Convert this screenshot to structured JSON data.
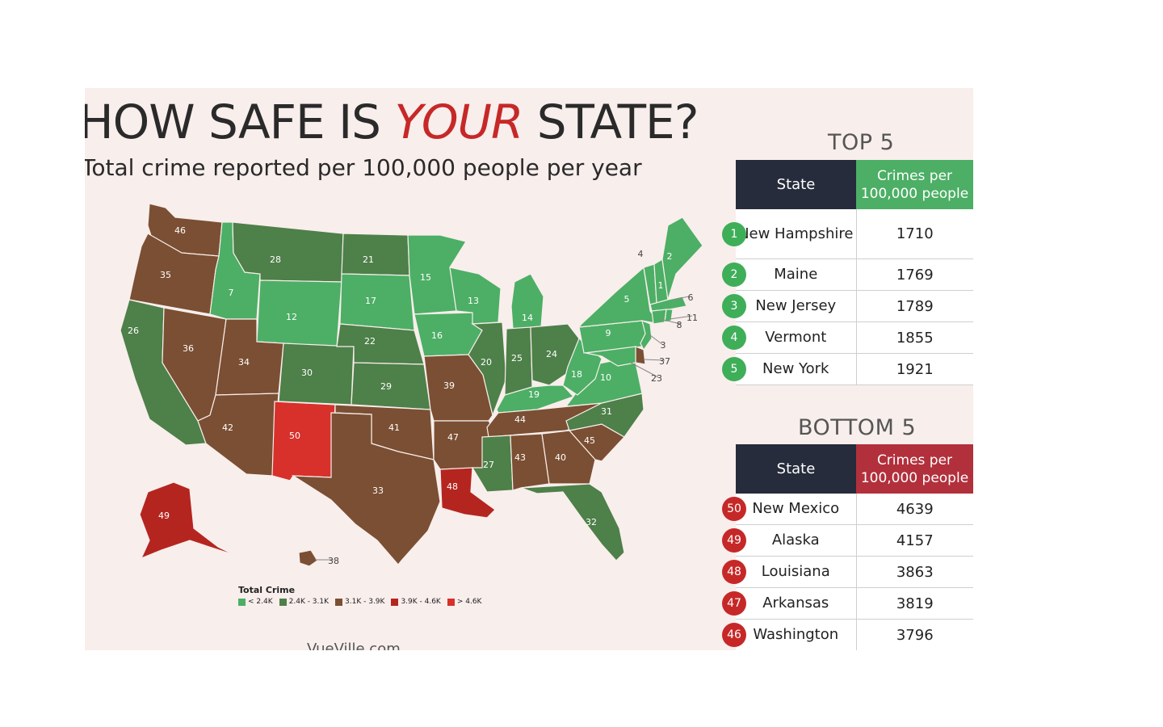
{
  "header": {
    "title_pre": "HOW SAFE IS ",
    "title_em": "YOUR",
    "title_post": " STATE?",
    "subtitle": "Total crime reported per 100,000 people per year"
  },
  "colors": {
    "bin1": "#4caf65",
    "bin2": "#4e8049",
    "bin3": "#7b4f33",
    "bin4": "#b5251f",
    "bin5": "#d8302b",
    "top_header": "#4caf65",
    "bottom_header": "#b2303c",
    "badge_green": "#3fae59",
    "badge_red": "#c62828"
  },
  "legend": {
    "title": "Total Crime",
    "items": [
      {
        "label": "< 2.4K",
        "color": "#4caf65"
      },
      {
        "label": "2.4K - 3.1K",
        "color": "#4e8049"
      },
      {
        "label": "3.1K - 3.9K",
        "color": "#7b4f33"
      },
      {
        "label": "3.9K - 4.6K",
        "color": "#b5251f"
      },
      {
        "label": "> 4.6K",
        "color": "#d8302b"
      }
    ]
  },
  "map_ranks": {
    "WA": "46",
    "OR": "35",
    "CA": "26",
    "NV": "36",
    "ID": "7",
    "MT": "28",
    "WY": "12",
    "UT": "34",
    "AZ": "42",
    "CO": "30",
    "NM": "50",
    "ND": "21",
    "SD": "17",
    "NE": "22",
    "KS": "29",
    "OK": "41",
    "TX": "33",
    "MN": "15",
    "IA": "16",
    "MO": "39",
    "AR": "47",
    "LA": "48",
    "WI": "13",
    "IL": "20",
    "MI": "14",
    "IN": "25",
    "OH": "24",
    "KY": "19",
    "TN": "44",
    "MS": "27",
    "AL": "43",
    "GA": "40",
    "FL": "32",
    "SC": "45",
    "NC": "31",
    "VA": "10",
    "WV": "18",
    "PA": "9",
    "NY": "5",
    "ME": "2",
    "NH": "1",
    "VT": "4",
    "MA": "6",
    "RI": "11",
    "CT": "8",
    "NJ": "3",
    "DE": "37",
    "MD": "23",
    "AK": "49",
    "HI": "38"
  },
  "top5": {
    "title": "TOP 5",
    "col_state": "State",
    "col_value": "Crimes per 100,000 people",
    "rows": [
      {
        "rank": "1",
        "state": "New Hampshire",
        "value": "1710"
      },
      {
        "rank": "2",
        "state": "Maine",
        "value": "1769"
      },
      {
        "rank": "3",
        "state": "New Jersey",
        "value": "1789"
      },
      {
        "rank": "4",
        "state": "Vermont",
        "value": "1855"
      },
      {
        "rank": "5",
        "state": "New York",
        "value": "1921"
      }
    ]
  },
  "bottom5": {
    "title": "BOTTOM 5",
    "col_state": "State",
    "col_value": "Crimes per 100,000 people",
    "rows": [
      {
        "rank": "50",
        "state": "New Mexico",
        "value": "4639"
      },
      {
        "rank": "49",
        "state": "Alaska",
        "value": "4157"
      },
      {
        "rank": "48",
        "state": "Louisiana",
        "value": "3863"
      },
      {
        "rank": "47",
        "state": "Arkansas",
        "value": "3819"
      },
      {
        "rank": "46",
        "state": "Washington",
        "value": "3796"
      }
    ]
  },
  "footer": {
    "site": "VueVille.com"
  }
}
